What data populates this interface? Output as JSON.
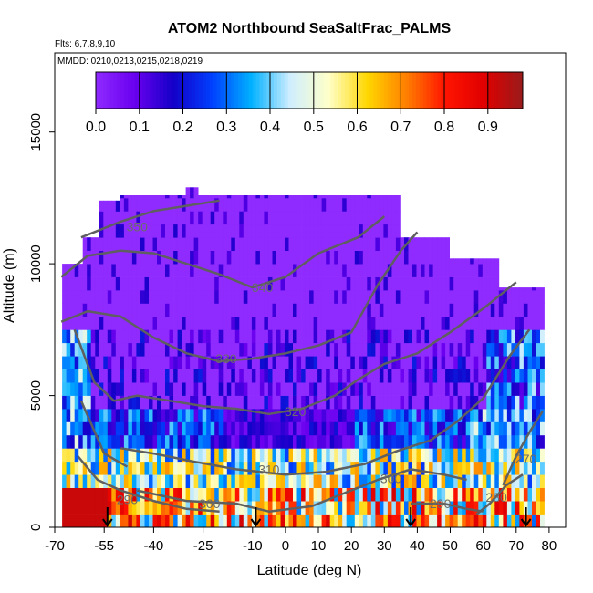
{
  "chart_data": {
    "type": "heatmap",
    "title": "ATOM2 Northbound SeaSaltFrac_PALMS",
    "flights_note": "Flts: 6,7,8,9,10",
    "dates_note": "MMDD: 0210,0213,0215,0218,0219",
    "xlabel": "Latitude (deg N)",
    "ylabel": "Altitude (m)",
    "xlim": [
      -70,
      85
    ],
    "ylim": [
      0,
      18000
    ],
    "x_ticks": [
      -70,
      -55,
      -40,
      -25,
      -10,
      0,
      10,
      20,
      30,
      40,
      50,
      60,
      70,
      80
    ],
    "x_tick_labels": [
      "-70",
      "-55",
      "-40",
      "-25",
      "-10",
      "0",
      "10",
      "20",
      "30",
      "40",
      "50",
      "60",
      "70",
      "80"
    ],
    "y_ticks": [
      0,
      5000,
      10000,
      15000
    ],
    "y_tick_labels": [
      "0",
      "5000",
      "10000",
      "15000"
    ],
    "colorbar": {
      "range": [
        0,
        0.98
      ],
      "ticks": [
        0.0,
        0.1,
        0.2,
        0.3,
        0.4,
        0.5,
        0.6,
        0.7,
        0.8,
        0.9
      ],
      "tick_labels": [
        "0.0",
        "0.1",
        "0.2",
        "0.3",
        "0.4",
        "0.5",
        "0.6",
        "0.7",
        "0.8",
        "0.9"
      ],
      "colors": [
        "#8f2bff",
        "#6a00ef",
        "#1400c8",
        "#0040ff",
        "#00b0ff",
        "#cfeeff",
        "#ffffc8",
        "#ffd700",
        "#ff7f00",
        "#ff1400",
        "#e00000",
        "#9a1b1b"
      ]
    },
    "contour_labels": [
      {
        "value": "350",
        "lat": -45,
        "alt": 11400
      },
      {
        "value": "340",
        "lat": -7,
        "alt": 9100
      },
      {
        "value": "330",
        "lat": -18,
        "alt": 6400
      },
      {
        "value": "320",
        "lat": 3,
        "alt": 4400
      },
      {
        "value": "310",
        "lat": -5,
        "alt": 2200
      },
      {
        "value": "300",
        "lat": -23,
        "alt": 900
      },
      {
        "value": "300",
        "lat": 32,
        "alt": 1850
      },
      {
        "value": "290",
        "lat": -48,
        "alt": 1050
      },
      {
        "value": "290",
        "lat": 47,
        "alt": 900
      },
      {
        "value": "280",
        "lat": 64,
        "alt": 1150
      },
      {
        "value": "270",
        "lat": 73,
        "alt": 2600
      }
    ],
    "profile_markers_lat": [
      -54,
      -9,
      38,
      73
    ]
  }
}
